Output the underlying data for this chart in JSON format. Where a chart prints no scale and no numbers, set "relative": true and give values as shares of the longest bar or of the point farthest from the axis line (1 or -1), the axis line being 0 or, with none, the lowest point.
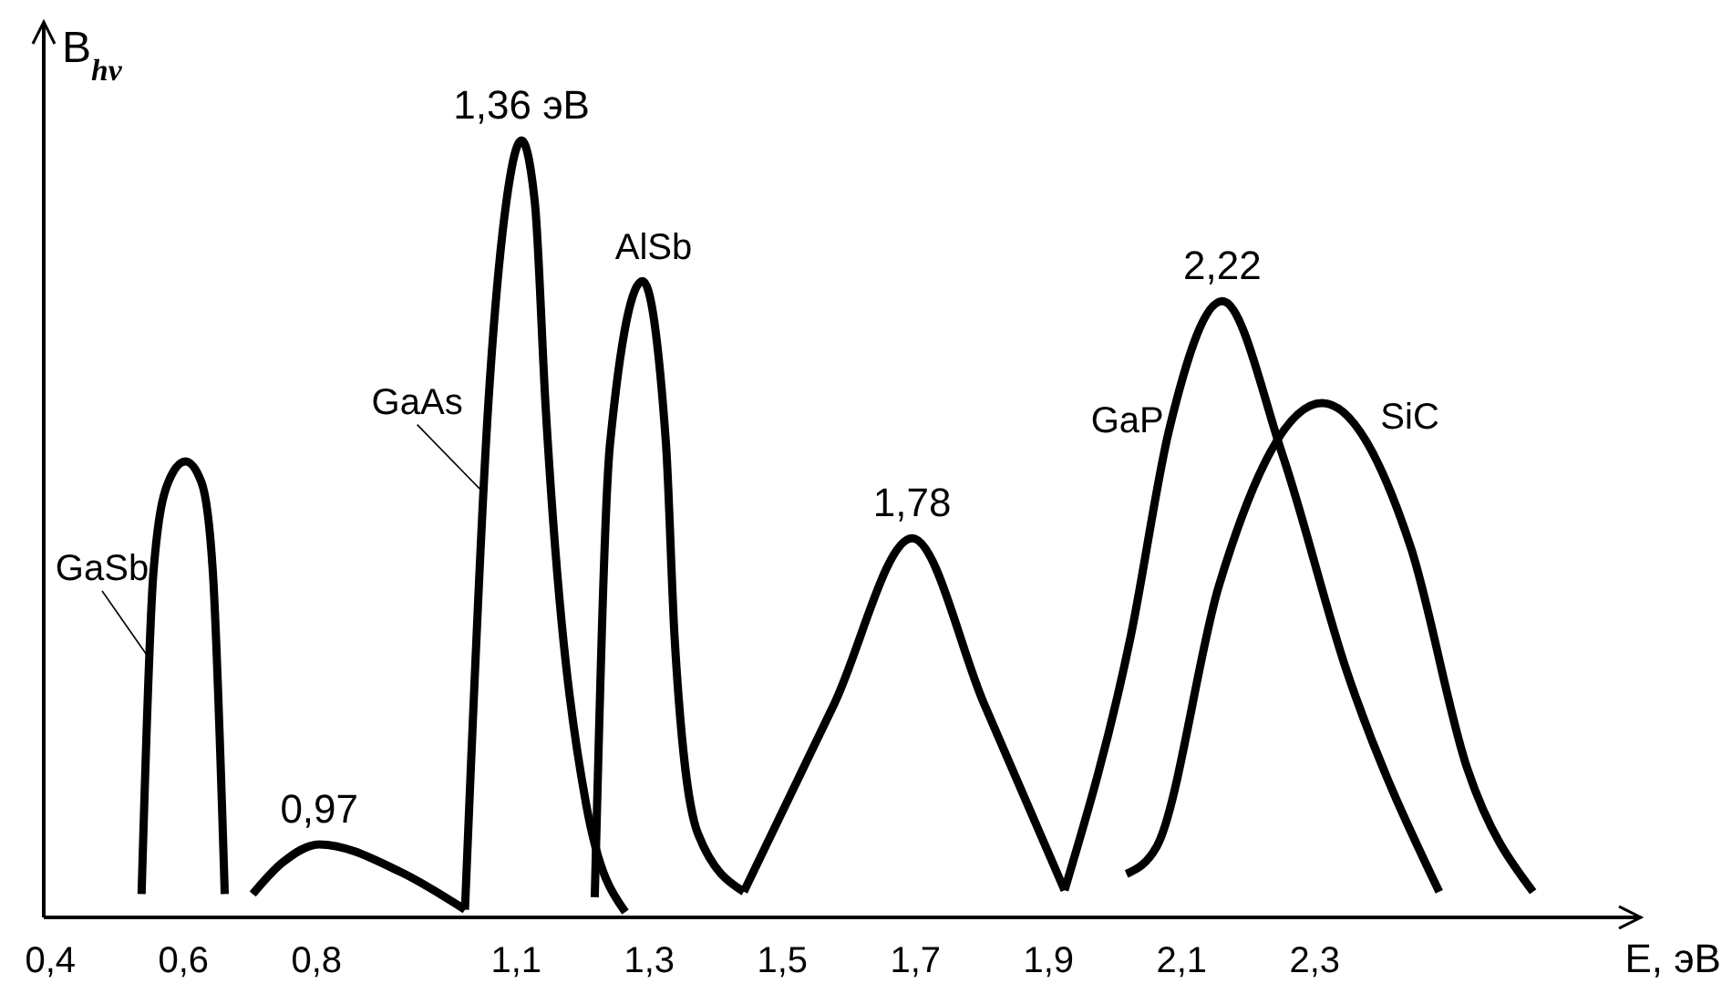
{
  "chart_data": {
    "type": "line",
    "relative": true,
    "xlabel": "E, эВ",
    "ylabel": "B$_{hν}$",
    "xlim": [
      0.39,
      2.79
    ],
    "xticks": [
      {
        "value": 0.4,
        "label": "0,4"
      },
      {
        "value": 0.6,
        "label": "0,6"
      },
      {
        "value": 0.8,
        "label": "0,8"
      },
      {
        "value": 1.1,
        "label": "1,1"
      },
      {
        "value": 1.3,
        "label": "1,3"
      },
      {
        "value": 1.5,
        "label": "1,5"
      },
      {
        "value": 1.7,
        "label": "1,7"
      },
      {
        "value": 1.9,
        "label": "1,9"
      },
      {
        "value": 2.1,
        "label": "2,1"
      },
      {
        "value": 2.3,
        "label": "2,3"
      }
    ],
    "grid": false,
    "marker": "none",
    "line_style": "solid",
    "series": [
      {
        "name": "GaSb",
        "color": "#000000",
        "x": [
          0.537,
          0.555,
          0.577,
          0.603,
          0.627,
          0.644,
          0.662
        ],
        "values": [
          0.03,
          0.446,
          0.56,
          0.587,
          0.56,
          0.446,
          0.03
        ]
      },
      {
        "color": "#000000",
        "x": [
          0.704,
          0.748,
          0.804,
          0.925,
          1.023
        ],
        "values": [
          0.03,
          0.07,
          0.094,
          0.059,
          0.01
        ]
      },
      {
        "name": "GaAs",
        "color": "#000000",
        "x": [
          1.023,
          1.058,
          1.085,
          1.108,
          1.128,
          1.144,
          1.205,
          1.264
        ],
        "values": [
          0.01,
          0.66,
          0.92,
          1,
          0.92,
          0.66,
          0.146,
          0.007
        ]
      },
      {
        "name": "AlSb",
        "color": "#000000",
        "x": [
          1.218,
          1.241,
          1.29,
          1.325,
          1.338,
          1.373,
          1.442
        ],
        "values": [
          0.026,
          0.61,
          0.819,
          0.61,
          0.36,
          0.108,
          0.033
        ]
      },
      {
        "color": "#000000",
        "x": [
          1.442,
          1.578,
          1.695,
          1.803,
          1.924
        ],
        "values": [
          0.033,
          0.275,
          0.488,
          0.275,
          0.035
        ]
      },
      {
        "name": "GaP",
        "color": "#000000",
        "x": [
          1.924,
          2.023,
          2.081,
          2.161,
          2.252,
          2.348,
          2.487
        ],
        "values": [
          0.035,
          0.36,
          0.627,
          0.793,
          0.594,
          0.317,
          0.033
        ]
      },
      {
        "name": "SiC",
        "color": "#000000",
        "x": [
          2.017,
          2.063,
          2.156,
          2.311,
          2.444,
          2.529,
          2.628
        ],
        "values": [
          0.056,
          0.092,
          0.427,
          0.662,
          0.477,
          0.192,
          0.033
        ]
      }
    ],
    "annotations": [
      {
        "text": "0,97",
        "x": 0.804,
        "y": 0.094
      },
      {
        "text": "1,36 эВ",
        "x": 1.108,
        "y": 1
      },
      {
        "text": "1,78",
        "x": 1.695,
        "y": 0.488
      },
      {
        "text": "2,22",
        "x": 2.161,
        "y": 0.793
      }
    ]
  }
}
